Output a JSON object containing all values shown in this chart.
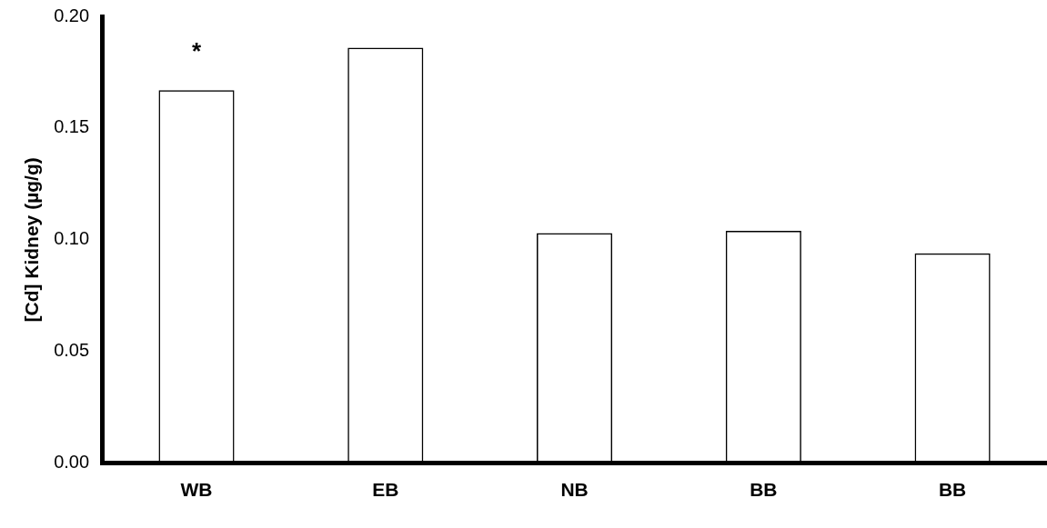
{
  "chart_data": {
    "type": "bar",
    "ylabel": "[Cd] Kidney (µg/g)",
    "categories": [
      "WB",
      "EB",
      "NB",
      "BB",
      "BB"
    ],
    "values": [
      0.167,
      0.186,
      0.103,
      0.104,
      0.094
    ],
    "color": "#000000",
    "ylim": [
      0,
      0.2
    ],
    "yticks": [
      {
        "value": 0,
        "label": "0.00"
      },
      {
        "value": 0.05,
        "label": "0.05"
      },
      {
        "value": 0.1,
        "label": "0.10"
      },
      {
        "value": 0.15,
        "label": "0.15"
      },
      {
        "value": 0.2,
        "label": "0.20"
      }
    ],
    "grid": false,
    "legend": false,
    "annotations": [
      "*"
    ]
  }
}
